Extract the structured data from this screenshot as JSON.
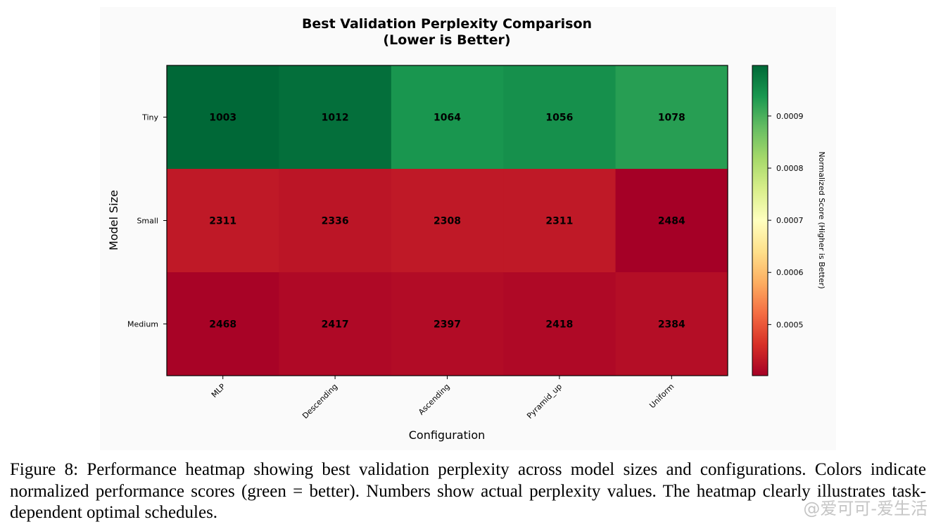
{
  "chart_data": {
    "type": "heatmap",
    "title": [
      "Best Validation Perplexity Comparison",
      "(Lower is Better)"
    ],
    "xlabel": "Configuration",
    "ylabel": "Model Size",
    "x_categories": [
      "MLP",
      "Descending",
      "Ascending",
      "Pyramid_up",
      "Uniform"
    ],
    "y_categories": [
      "Tiny",
      "Small",
      "Medium"
    ],
    "values": [
      [
        1003,
        1012,
        1064,
        1056,
        1078
      ],
      [
        2311,
        2336,
        2308,
        2311,
        2484
      ],
      [
        2468,
        2417,
        2397,
        2418,
        2384
      ]
    ],
    "colormap": "RdYlGn",
    "colorbar": {
      "label": "Normalized Score (Higher is Better)",
      "range": [
        0.000402,
        0.000997
      ],
      "ticks": [
        0.0005,
        0.0006,
        0.0007,
        0.0008,
        0.0009
      ],
      "tick_labels": [
        "0.0005",
        "0.0006",
        "0.0007",
        "0.0008",
        "0.0009"
      ]
    }
  },
  "caption": "Figure 8: Performance heatmap showing best validation perplexity across model sizes and configurations. Colors indicate normalized performance scores (green = better). Numbers show actual perplexity values. The heatmap clearly illustrates task-dependent optimal schedules.",
  "watermark": "@爱可可-爱生活"
}
